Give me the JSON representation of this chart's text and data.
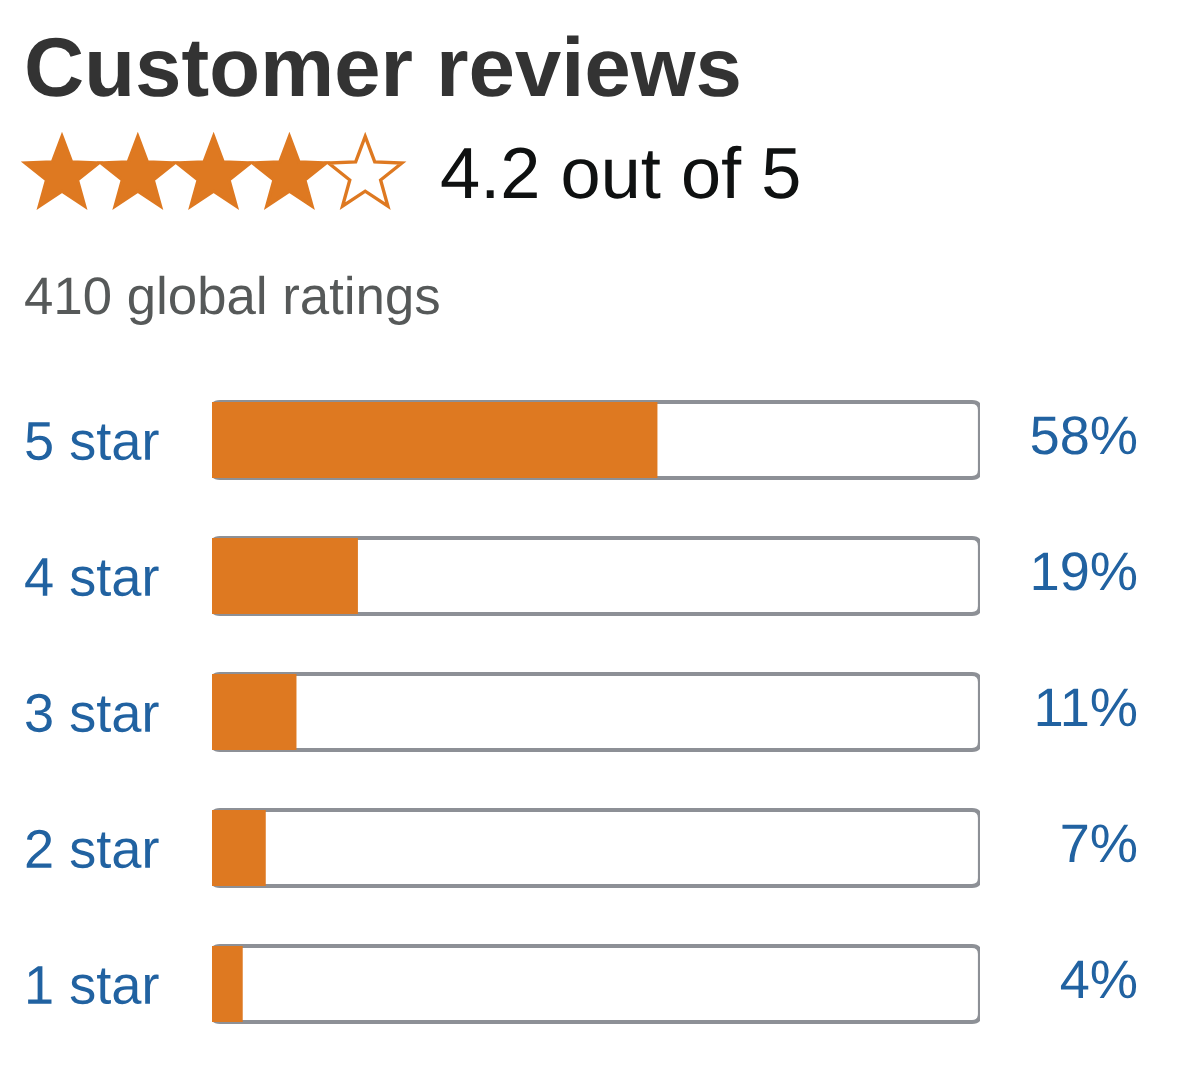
{
  "chart_data": {
    "type": "bar",
    "orientation": "horizontal",
    "title": "Customer reviews",
    "subtitle": "4.2 out of 5",
    "annotations": [
      "410 global ratings"
    ],
    "categories": [
      "5 star",
      "4 star",
      "3 star",
      "2 star",
      "1 star"
    ],
    "values": [
      58,
      19,
      11,
      7,
      4
    ],
    "color": "#de7921",
    "value_labels": [
      "58%",
      "19%",
      "11%",
      "7%",
      "4%"
    ],
    "xlim": [
      0,
      100
    ],
    "tick_labels": "y"
  }
}
